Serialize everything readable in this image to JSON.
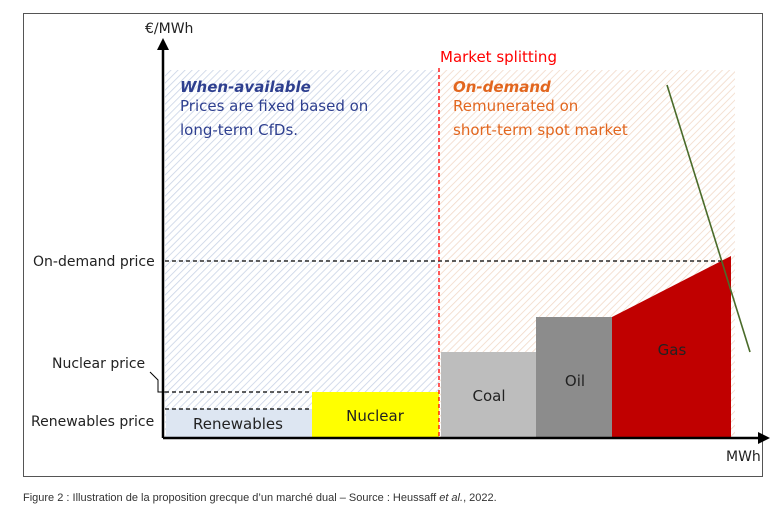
{
  "diagram": {
    "y_axis_label": "€/MWh",
    "x_axis_label": "MWh",
    "split_label": "Market splitting",
    "left_zone": {
      "title": "When-available",
      "line1": "Prices are fixed based on",
      "line2": "long-term CfDs."
    },
    "right_zone": {
      "title": "On-demand",
      "line1": "Remunerated on",
      "line2": "short-term spot market"
    },
    "price_levels": {
      "on_demand": "On-demand price",
      "nuclear": "Nuclear price",
      "renewables": "Renewables price"
    },
    "blocks": [
      {
        "key": "renewables",
        "label": "Renewables",
        "color": "#dde6f2"
      },
      {
        "key": "nuclear",
        "label": "Nuclear",
        "color": "#ffff00"
      },
      {
        "key": "coal",
        "label": "Coal",
        "color": "#bdbdbd"
      },
      {
        "key": "oil",
        "label": "Oil",
        "color": "#8c8c8c"
      },
      {
        "key": "gas",
        "label": "Gas",
        "color": "#c00000"
      }
    ],
    "colors": {
      "axis": "#000000",
      "split_line": "#ff0000",
      "left_title": "#2e3f8f",
      "left_text": "#2e3f8f",
      "right_title": "#e2661e",
      "right_text": "#e2661e",
      "demand_curve": "#4a6b2a"
    }
  },
  "caption": {
    "prefix": "Figure 2 : Illustration de la proposition grecque d’un marché dual – Source : Heussaff ",
    "italic": "et al.",
    "suffix": ", 2022."
  }
}
